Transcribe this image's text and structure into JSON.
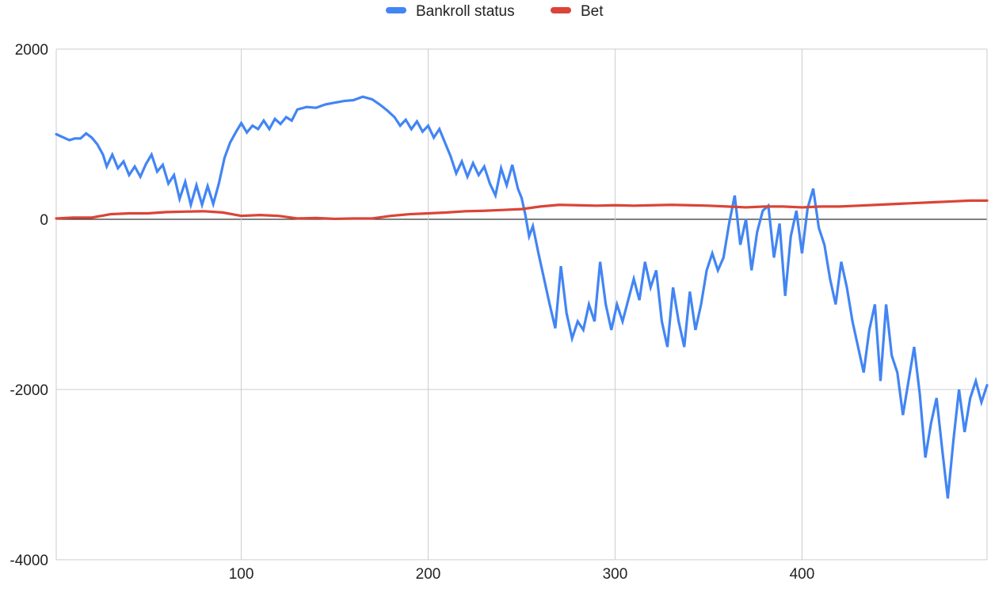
{
  "chart_data": {
    "type": "line",
    "title": "",
    "xlabel": "",
    "ylabel": "",
    "xlim": [
      1,
      499
    ],
    "ylim": [
      -4000,
      2000
    ],
    "x_ticks": [
      100,
      200,
      300,
      400
    ],
    "x_tick_labels": [
      "100",
      "200",
      "300",
      "400"
    ],
    "y_ticks": [
      2000,
      0,
      -2000,
      -4000
    ],
    "y_tick_labels": [
      "2000",
      "0",
      "-2000",
      "-4000"
    ],
    "grid": true,
    "legend_position": "top-center",
    "series": [
      {
        "name": "Bankroll status",
        "color": "#4285f4",
        "points": [
          [
            1,
            1000
          ],
          [
            5,
            960
          ],
          [
            8,
            930
          ],
          [
            11,
            950
          ],
          [
            14,
            950
          ],
          [
            17,
            1010
          ],
          [
            20,
            960
          ],
          [
            23,
            880
          ],
          [
            26,
            760
          ],
          [
            28,
            620
          ],
          [
            31,
            760
          ],
          [
            34,
            600
          ],
          [
            37,
            680
          ],
          [
            40,
            520
          ],
          [
            43,
            620
          ],
          [
            46,
            500
          ],
          [
            49,
            650
          ],
          [
            52,
            760
          ],
          [
            55,
            560
          ],
          [
            58,
            640
          ],
          [
            61,
            420
          ],
          [
            64,
            520
          ],
          [
            67,
            240
          ],
          [
            70,
            440
          ],
          [
            73,
            170
          ],
          [
            76,
            400
          ],
          [
            79,
            170
          ],
          [
            82,
            390
          ],
          [
            85,
            180
          ],
          [
            88,
            420
          ],
          [
            91,
            720
          ],
          [
            94,
            900
          ],
          [
            97,
            1020
          ],
          [
            100,
            1130
          ],
          [
            103,
            1020
          ],
          [
            106,
            1100
          ],
          [
            109,
            1060
          ],
          [
            112,
            1160
          ],
          [
            115,
            1060
          ],
          [
            118,
            1180
          ],
          [
            121,
            1120
          ],
          [
            124,
            1200
          ],
          [
            127,
            1160
          ],
          [
            130,
            1290
          ],
          [
            135,
            1320
          ],
          [
            140,
            1310
          ],
          [
            145,
            1350
          ],
          [
            150,
            1370
          ],
          [
            155,
            1390
          ],
          [
            160,
            1400
          ],
          [
            165,
            1440
          ],
          [
            170,
            1410
          ],
          [
            174,
            1350
          ],
          [
            178,
            1280
          ],
          [
            182,
            1200
          ],
          [
            185,
            1100
          ],
          [
            188,
            1170
          ],
          [
            191,
            1060
          ],
          [
            194,
            1150
          ],
          [
            197,
            1030
          ],
          [
            200,
            1100
          ],
          [
            203,
            960
          ],
          [
            206,
            1060
          ],
          [
            209,
            900
          ],
          [
            212,
            740
          ],
          [
            215,
            540
          ],
          [
            218,
            680
          ],
          [
            221,
            500
          ],
          [
            224,
            660
          ],
          [
            227,
            520
          ],
          [
            230,
            620
          ],
          [
            233,
            420
          ],
          [
            236,
            280
          ],
          [
            239,
            600
          ],
          [
            242,
            400
          ],
          [
            245,
            640
          ],
          [
            248,
            360
          ],
          [
            250,
            250
          ],
          [
            252,
            50
          ],
          [
            254,
            -200
          ],
          [
            256,
            -80
          ],
          [
            259,
            -400
          ],
          [
            262,
            -700
          ],
          [
            265,
            -1000
          ],
          [
            268,
            -1280
          ],
          [
            271,
            -550
          ],
          [
            274,
            -1100
          ],
          [
            277,
            -1400
          ],
          [
            280,
            -1200
          ],
          [
            283,
            -1300
          ],
          [
            286,
            -1000
          ],
          [
            289,
            -1200
          ],
          [
            292,
            -500
          ],
          [
            295,
            -1000
          ],
          [
            298,
            -1300
          ],
          [
            301,
            -1000
          ],
          [
            304,
            -1200
          ],
          [
            307,
            -950
          ],
          [
            310,
            -700
          ],
          [
            313,
            -950
          ],
          [
            316,
            -500
          ],
          [
            319,
            -800
          ],
          [
            322,
            -600
          ],
          [
            325,
            -1200
          ],
          [
            328,
            -1500
          ],
          [
            331,
            -800
          ],
          [
            334,
            -1200
          ],
          [
            337,
            -1500
          ],
          [
            340,
            -850
          ],
          [
            343,
            -1300
          ],
          [
            346,
            -1000
          ],
          [
            349,
            -600
          ],
          [
            352,
            -400
          ],
          [
            355,
            -600
          ],
          [
            358,
            -450
          ],
          [
            361,
            -50
          ],
          [
            364,
            280
          ],
          [
            367,
            -300
          ],
          [
            370,
            0
          ],
          [
            373,
            -600
          ],
          [
            376,
            -150
          ],
          [
            379,
            100
          ],
          [
            382,
            160
          ],
          [
            385,
            -450
          ],
          [
            388,
            -50
          ],
          [
            391,
            -900
          ],
          [
            394,
            -200
          ],
          [
            397,
            100
          ],
          [
            400,
            -400
          ],
          [
            403,
            130
          ],
          [
            406,
            360
          ],
          [
            409,
            -100
          ],
          [
            412,
            -300
          ],
          [
            415,
            -700
          ],
          [
            418,
            -1000
          ],
          [
            421,
            -500
          ],
          [
            424,
            -800
          ],
          [
            427,
            -1200
          ],
          [
            430,
            -1500
          ],
          [
            433,
            -1800
          ],
          [
            436,
            -1300
          ],
          [
            439,
            -1000
          ],
          [
            442,
            -1900
          ],
          [
            445,
            -1000
          ],
          [
            448,
            -1600
          ],
          [
            451,
            -1800
          ],
          [
            454,
            -2300
          ],
          [
            457,
            -1900
          ],
          [
            460,
            -1500
          ],
          [
            463,
            -2050
          ],
          [
            466,
            -2800
          ],
          [
            469,
            -2400
          ],
          [
            472,
            -2100
          ],
          [
            475,
            -2700
          ],
          [
            478,
            -3280
          ],
          [
            481,
            -2600
          ],
          [
            484,
            -2000
          ],
          [
            487,
            -2500
          ],
          [
            490,
            -2100
          ],
          [
            493,
            -1900
          ],
          [
            496,
            -2150
          ],
          [
            499,
            -1950
          ]
        ]
      },
      {
        "name": "Bet",
        "color": "#db4437",
        "points": [
          [
            1,
            10
          ],
          [
            10,
            20
          ],
          [
            20,
            20
          ],
          [
            30,
            60
          ],
          [
            40,
            70
          ],
          [
            50,
            70
          ],
          [
            60,
            85
          ],
          [
            70,
            90
          ],
          [
            80,
            95
          ],
          [
            90,
            80
          ],
          [
            100,
            40
          ],
          [
            110,
            50
          ],
          [
            120,
            40
          ],
          [
            130,
            10
          ],
          [
            140,
            15
          ],
          [
            150,
            5
          ],
          [
            160,
            10
          ],
          [
            170,
            10
          ],
          [
            180,
            40
          ],
          [
            190,
            60
          ],
          [
            200,
            70
          ],
          [
            210,
            80
          ],
          [
            220,
            95
          ],
          [
            230,
            100
          ],
          [
            240,
            110
          ],
          [
            250,
            120
          ],
          [
            260,
            150
          ],
          [
            270,
            170
          ],
          [
            280,
            165
          ],
          [
            290,
            160
          ],
          [
            300,
            165
          ],
          [
            310,
            160
          ],
          [
            320,
            165
          ],
          [
            330,
            170
          ],
          [
            340,
            165
          ],
          [
            350,
            160
          ],
          [
            360,
            150
          ],
          [
            370,
            140
          ],
          [
            380,
            150
          ],
          [
            390,
            150
          ],
          [
            400,
            140
          ],
          [
            410,
            150
          ],
          [
            420,
            150
          ],
          [
            430,
            160
          ],
          [
            440,
            170
          ],
          [
            450,
            180
          ],
          [
            460,
            190
          ],
          [
            470,
            200
          ],
          [
            480,
            210
          ],
          [
            490,
            220
          ],
          [
            499,
            220
          ]
        ]
      }
    ]
  }
}
